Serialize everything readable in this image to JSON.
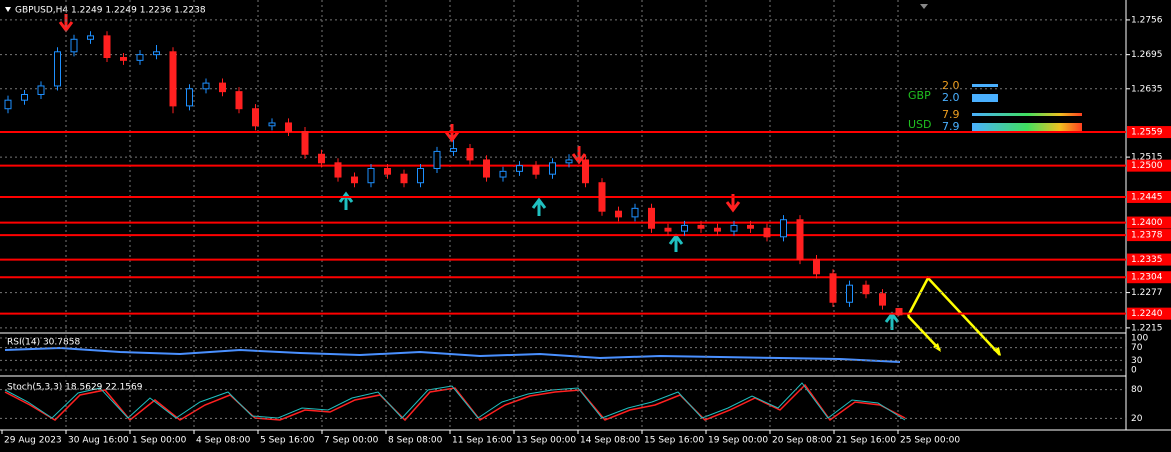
{
  "header": {
    "title": "GBPUSD,H4  1.2249 1.2249 1.2236 1.2238"
  },
  "legend": {
    "rows": [
      {
        "name": "GBP",
        "values": [
          "2.0",
          "2.0"
        ]
      },
      {
        "name": "USD",
        "values": [
          "7.9",
          "7.9"
        ]
      }
    ]
  },
  "chart_data": {
    "type": "candlestick",
    "categories": [
      "29 Aug 2023",
      "30 Aug 16:00",
      "1 Sep 00:00",
      "4 Sep 08:00",
      "5 Sep 16:00",
      "7 Sep 00:00",
      "8 Sep 08:00",
      "11 Sep 16:00",
      "13 Sep 00:00",
      "14 Sep 08:00",
      "15 Sep 16:00",
      "19 Sep 00:00",
      "20 Sep 08:00",
      "21 Sep 16:00",
      "25 Sep 00:00"
    ],
    "open": [
      1.26,
      1.2615,
      1.2625,
      1.264,
      1.27,
      1.2722,
      1.2728,
      1.269,
      1.2685,
      1.2695,
      1.27,
      1.2605,
      1.2635,
      1.2645,
      1.263,
      1.26,
      1.257,
      1.2575,
      1.256,
      1.252,
      1.2505,
      1.248,
      1.247,
      1.2495,
      1.2485,
      1.247,
      1.2495,
      1.2525,
      1.253,
      1.251,
      1.248,
      1.249,
      1.25,
      1.2485,
      1.2505,
      1.251,
      1.247,
      1.242,
      1.241,
      1.2425,
      1.239,
      1.2385,
      1.2395,
      1.239,
      1.2385,
      1.2395,
      1.239,
      1.2375,
      1.2405,
      1.2335,
      1.231,
      1.226,
      1.229,
      1.2275,
      1.2249
    ],
    "high": [
      1.2623,
      1.2633,
      1.2648,
      1.2708,
      1.273,
      1.2736,
      1.2736,
      1.2698,
      1.2703,
      1.2712,
      1.2708,
      1.2643,
      1.2653,
      1.2653,
      1.2638,
      1.2608,
      1.2583,
      1.2583,
      1.2568,
      1.2528,
      1.2513,
      1.2488,
      1.2503,
      1.2503,
      1.2493,
      1.2503,
      1.2533,
      1.2545,
      1.2538,
      1.2518,
      1.2498,
      1.2508,
      1.2508,
      1.2513,
      1.252,
      1.2518,
      1.2478,
      1.2428,
      1.2433,
      1.2433,
      1.2398,
      1.2403,
      1.2403,
      1.2398,
      1.2403,
      1.2403,
      1.2398,
      1.2413,
      1.2413,
      1.2343,
      1.2318,
      1.2298,
      1.2298,
      1.2283,
      1.2249
    ],
    "low": [
      1.2592,
      1.2607,
      1.2617,
      1.2632,
      1.2692,
      1.2714,
      1.2682,
      1.2677,
      1.2677,
      1.2687,
      1.2592,
      1.2597,
      1.2627,
      1.2622,
      1.2592,
      1.2562,
      1.2562,
      1.2552,
      1.2512,
      1.2497,
      1.2472,
      1.2462,
      1.2462,
      1.2477,
      1.2462,
      1.2462,
      1.2487,
      1.2517,
      1.2502,
      1.2472,
      1.2472,
      1.2482,
      1.2477,
      1.2477,
      1.2497,
      1.2462,
      1.2412,
      1.2402,
      1.2402,
      1.2382,
      1.2377,
      1.2377,
      1.2382,
      1.2377,
      1.2377,
      1.2382,
      1.2367,
      1.2367,
      1.2327,
      1.2302,
      1.2252,
      1.2252,
      1.2267,
      1.2247,
      1.2236
    ],
    "close": [
      1.2615,
      1.2625,
      1.264,
      1.27,
      1.2722,
      1.2728,
      1.269,
      1.2685,
      1.2695,
      1.27,
      1.2605,
      1.2635,
      1.2645,
      1.263,
      1.26,
      1.257,
      1.2575,
      1.256,
      1.252,
      1.2505,
      1.248,
      1.247,
      1.2495,
      1.2485,
      1.247,
      1.2495,
      1.2525,
      1.253,
      1.251,
      1.248,
      1.249,
      1.25,
      1.2485,
      1.2505,
      1.251,
      1.247,
      1.242,
      1.241,
      1.2425,
      1.239,
      1.2385,
      1.2395,
      1.239,
      1.2385,
      1.2395,
      1.239,
      1.2375,
      1.2405,
      1.2335,
      1.231,
      1.226,
      1.229,
      1.2275,
      1.2255,
      1.2238
    ],
    "up_color": "#1e90ff",
    "down_color": "#ff2020",
    "ylim": [
      1.2206,
      1.2791
    ],
    "yticks": [
      1.2756,
      1.2695,
      1.2635,
      1.2515,
      1.2277,
      1.2215
    ],
    "levels": [
      1.2559,
      {
        "value": 1.25,
        "label": "1.2500"
      },
      1.2445,
      {
        "value": 1.24,
        "label": "1.2400"
      },
      1.2378,
      1.2335,
      1.2304,
      {
        "value": 1.224,
        "label": "1.2240"
      }
    ],
    "level_color": "#ff0000",
    "grid": true,
    "rsi": {
      "label": "RSI(14) 30.7858",
      "ylim": [
        0,
        100
      ],
      "yticks": [
        100,
        70,
        30,
        0
      ]
    },
    "stoch": {
      "label": "Stoch(5,3,3) 18.5629 22.1569",
      "ylim": [
        0,
        100
      ],
      "yticks": [
        80,
        20
      ]
    }
  }
}
